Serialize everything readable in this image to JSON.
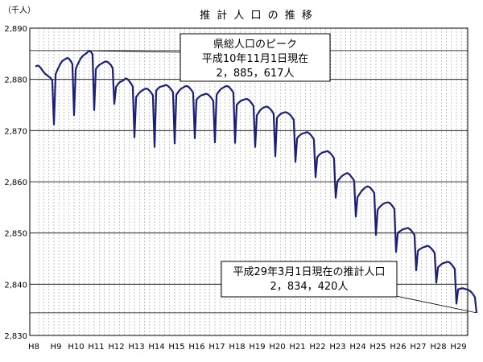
{
  "chart_data": {
    "type": "line",
    "title": "推 計 人 口 の 推 移",
    "unit_label": "（千人）",
    "ylim": [
      2830,
      2890
    ],
    "y_ticks": [
      2830,
      2840,
      2850,
      2860,
      2870,
      2880,
      2890
    ],
    "y_tick_labels": [
      "2,830",
      "2,840",
      "2,850",
      "2,860",
      "2,870",
      "2,880",
      "2,890"
    ],
    "x_tick_labels": [
      "H8",
      "H9",
      "H10",
      "H11",
      "H12",
      "H13",
      "H14",
      "H15",
      "H16",
      "H17",
      "H18",
      "H19",
      "H20",
      "H21",
      "H22",
      "H23",
      "H24",
      "H25",
      "H26",
      "H27",
      "H28",
      "H29"
    ],
    "reference_lines": [
      2885.617,
      2834.42
    ],
    "annotations": [
      {
        "name": "peak",
        "lines": [
          "県総人口のピーク",
          "平成10年11月1日現在",
          "2，885，617人"
        ]
      },
      {
        "name": "latest",
        "lines": [
          "平成29年3月1日現在の推計人口",
          "2，834，420人"
        ]
      }
    ],
    "series": [
      {
        "line_color": "#1a1f7a",
        "year_start_month": 3,
        "annual_profile": [
          [
            2882.5,
            2882.7,
            2882.6,
            2882.3,
            2881.8,
            2881.4,
            2881.0,
            2880.8,
            2880.5,
            2880.3,
            2879.8,
            2871.2
          ],
          [
            2881.0,
            2881.8,
            2882.5,
            2883.1,
            2883.6,
            2883.8,
            2884.0,
            2884.2,
            2884.0,
            2883.6,
            2883.0,
            2873.0
          ],
          [
            2882.0,
            2882.8,
            2883.5,
            2884.1,
            2884.5,
            2884.8,
            2885.0,
            2885.3,
            2885.6,
            2885.4,
            2884.9,
            2874.0
          ],
          [
            2882.0,
            2882.5,
            2882.8,
            2883.0,
            2883.2,
            2883.4,
            2883.5,
            2883.4,
            2883.1,
            2882.8,
            2882.2,
            2875.2
          ],
          [
            2878.5,
            2879.0,
            2879.4,
            2879.6,
            2879.7,
            2880.0,
            2880.2,
            2880.0,
            2879.6,
            2879.2,
            2878.6,
            2868.7
          ],
          [
            2876.5,
            2877.0,
            2877.4,
            2877.7,
            2877.9,
            2878.1,
            2878.2,
            2878.1,
            2877.8,
            2877.4,
            2876.9,
            2866.8
          ],
          [
            2877.8,
            2878.2,
            2878.5,
            2878.6,
            2878.7,
            2878.8,
            2878.9,
            2878.7,
            2878.4,
            2878.0,
            2877.5,
            2867.5
          ],
          [
            2877.0,
            2877.5,
            2877.9,
            2878.2,
            2878.4,
            2878.6,
            2878.7,
            2878.6,
            2878.3,
            2877.9,
            2877.4,
            2868.5
          ],
          [
            2876.0,
            2876.4,
            2876.7,
            2876.9,
            2877.0,
            2877.1,
            2877.2,
            2877.0,
            2876.7,
            2876.3,
            2875.8,
            2867.7
          ],
          [
            2877.0,
            2877.5,
            2877.9,
            2878.2,
            2878.4,
            2878.6,
            2878.7,
            2878.6,
            2878.3,
            2877.9,
            2877.4,
            2867.6
          ],
          [
            2875.0,
            2875.4,
            2875.7,
            2875.9,
            2876.0,
            2876.1,
            2876.2,
            2876.0,
            2875.7,
            2875.3,
            2874.8,
            2866.8
          ],
          [
            2873.0,
            2873.5,
            2874.0,
            2874.3,
            2874.5,
            2874.6,
            2874.7,
            2874.5,
            2874.2,
            2873.8,
            2873.3,
            2865.0
          ],
          [
            2872.5,
            2872.9,
            2873.2,
            2873.4,
            2873.5,
            2873.6,
            2873.5,
            2873.3,
            2873.0,
            2872.6,
            2872.1,
            2863.9
          ],
          [
            2868.5,
            2868.9,
            2869.2,
            2869.4,
            2869.5,
            2869.6,
            2869.7,
            2869.5,
            2869.2,
            2868.8,
            2868.3,
            2860.9
          ],
          [
            2864.8,
            2865.2,
            2865.5,
            2865.7,
            2865.8,
            2865.9,
            2866.0,
            2865.8,
            2865.5,
            2865.1,
            2864.6,
            2856.9
          ],
          [
            2860.0,
            2860.5,
            2860.9,
            2861.2,
            2861.4,
            2861.6,
            2861.7,
            2861.5,
            2861.1,
            2860.7,
            2860.2,
            2853.2
          ],
          [
            2857.0,
            2857.5,
            2858.0,
            2858.4,
            2858.7,
            2859.0,
            2859.1,
            2859.0,
            2858.7,
            2858.3,
            2857.8,
            2849.6
          ],
          [
            2854.5,
            2855.0,
            2855.3,
            2855.6,
            2855.8,
            2855.9,
            2856.0,
            2855.9,
            2855.6,
            2855.2,
            2854.7,
            2846.3
          ],
          [
            2850.0,
            2850.3,
            2850.5,
            2850.7,
            2850.8,
            2850.9,
            2851.0,
            2850.8,
            2850.5,
            2850.1,
            2849.6,
            2842.7
          ],
          [
            2846.5,
            2846.8,
            2847.0,
            2847.2,
            2847.3,
            2847.4,
            2847.5,
            2847.3,
            2847.0,
            2846.6,
            2846.1,
            2840.3
          ],
          [
            2843.3,
            2843.6,
            2843.9,
            2844.1,
            2844.2,
            2844.3,
            2844.4,
            2844.2,
            2843.9,
            2843.5,
            2843.0,
            2836.2
          ],
          [
            2839.0,
            2839.1,
            2839.2,
            2839.2,
            2839.1,
            2839.0,
            2838.9,
            2838.7,
            2838.4,
            2838.0,
            2837.5,
            2834.42
          ]
        ]
      }
    ],
    "grid": true
  }
}
